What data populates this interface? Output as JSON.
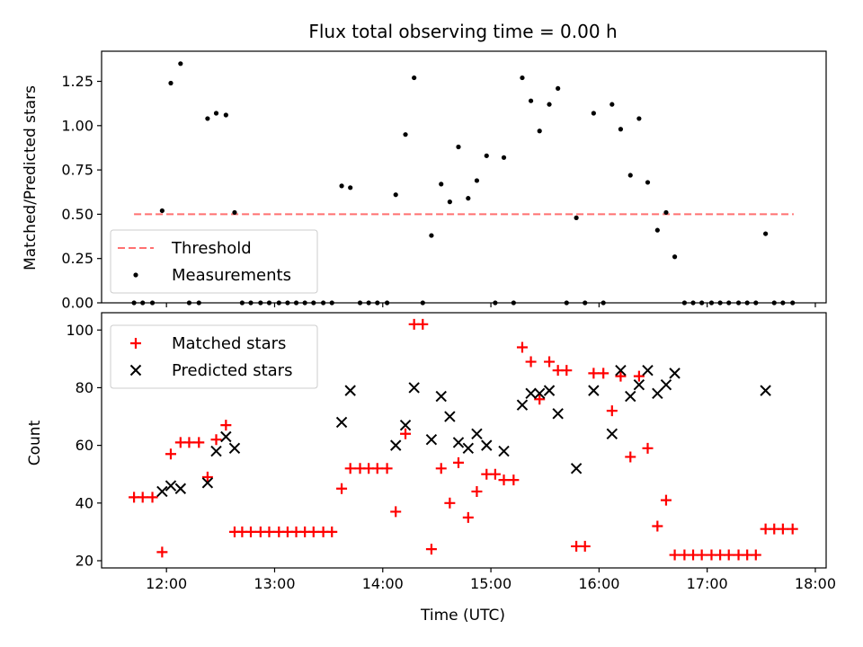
{
  "chart_data": {
    "title": "Flux total observing time = 0.00 h",
    "xlabel": "Time (UTC)",
    "xlim": [
      11.4,
      18.1
    ],
    "xticks": [
      {
        "value": 12,
        "label": "12:00"
      },
      {
        "value": 13,
        "label": "13:00"
      },
      {
        "value": 14,
        "label": "14:00"
      },
      {
        "value": 15,
        "label": "15:00"
      },
      {
        "value": 16,
        "label": "16:00"
      },
      {
        "value": 17,
        "label": "17:00"
      },
      {
        "value": 18,
        "label": "18:00"
      }
    ],
    "panels": [
      {
        "id": "ratio",
        "type": "scatter",
        "ylabel": "Matched/Predicted stars",
        "ylim": [
          0,
          1.42
        ],
        "yticks": [
          {
            "value": 0,
            "label": "0.00"
          },
          {
            "value": 0.25,
            "label": "0.25"
          },
          {
            "value": 0.5,
            "label": "0.50"
          },
          {
            "value": 0.75,
            "label": "0.75"
          },
          {
            "value": 1.0,
            "label": "1.00"
          },
          {
            "value": 1.25,
            "label": "1.25"
          }
        ],
        "legend_position": "lower-left",
        "threshold": {
          "name": "Threshold",
          "value": 0.5,
          "x_range": [
            11.7,
            17.8
          ],
          "color": "#ff7070",
          "style": "dashed"
        },
        "series": [
          {
            "name": "Measurements",
            "marker": "dot",
            "color": "#000000",
            "x": [
              11.7,
              11.78,
              11.87,
              11.96,
              12.04,
              12.13,
              12.21,
              12.3,
              12.38,
              12.46,
              12.55,
              12.63,
              12.7,
              12.78,
              12.87,
              12.95,
              13.04,
              13.12,
              13.2,
              13.28,
              13.36,
              13.45,
              13.53,
              13.62,
              13.7,
              13.79,
              13.87,
              13.95,
              14.04,
              14.12,
              14.21,
              14.29,
              14.37,
              14.45,
              14.54,
              14.62,
              14.7,
              14.79,
              14.87,
              14.96,
              15.04,
              15.12,
              15.21,
              15.29,
              15.37,
              15.45,
              15.54,
              15.62,
              15.7,
              15.79,
              15.87,
              15.95,
              16.04,
              16.12,
              16.2,
              16.29,
              16.37,
              16.45,
              16.54,
              16.62,
              16.7,
              16.79,
              16.87,
              16.95,
              17.04,
              17.12,
              17.2,
              17.29,
              17.37,
              17.45,
              17.54,
              17.62,
              17.7,
              17.79
            ],
            "y": [
              0,
              0,
              0,
              0.52,
              1.24,
              1.35,
              0,
              0,
              1.04,
              1.07,
              1.06,
              0.51,
              0,
              0,
              0,
              0,
              0,
              0,
              0,
              0,
              0,
              0,
              0,
              0.66,
              0.65,
              0,
              0,
              0,
              0,
              0.61,
              0.95,
              1.27,
              0,
              0.38,
              0.67,
              0.57,
              0.88,
              0.59,
              0.69,
              0.83,
              0,
              0.82,
              0,
              1.27,
              1.14,
              0.97,
              1.12,
              1.21,
              0,
              0.48,
              0,
              1.07,
              0,
              1.12,
              0.98,
              0.72,
              1.04,
              0.68,
              0.41,
              0.51,
              0.26,
              0,
              0,
              0,
              0,
              0,
              0,
              0,
              0,
              0,
              0.39,
              0,
              0,
              0
            ]
          }
        ]
      },
      {
        "id": "counts",
        "type": "scatter",
        "ylabel": "Count",
        "ylim": [
          17.5,
          106
        ],
        "yticks": [
          {
            "value": 20,
            "label": "20"
          },
          {
            "value": 40,
            "label": "40"
          },
          {
            "value": 60,
            "label": "60"
          },
          {
            "value": 80,
            "label": "80"
          },
          {
            "value": 100,
            "label": "100"
          }
        ],
        "legend_position": "upper-left",
        "series": [
          {
            "name": "Matched stars",
            "marker": "plus",
            "color": "#ff0000",
            "x": [
              11.7,
              11.78,
              11.87,
              11.96,
              12.04,
              12.13,
              12.21,
              12.3,
              12.38,
              12.46,
              12.55,
              12.63,
              12.7,
              12.78,
              12.87,
              12.95,
              13.04,
              13.12,
              13.2,
              13.28,
              13.36,
              13.45,
              13.53,
              13.62,
              13.7,
              13.79,
              13.87,
              13.95,
              14.04,
              14.12,
              14.21,
              14.29,
              14.37,
              14.45,
              14.54,
              14.62,
              14.7,
              14.79,
              14.87,
              14.96,
              15.04,
              15.12,
              15.21,
              15.29,
              15.37,
              15.45,
              15.54,
              15.62,
              15.7,
              15.79,
              15.87,
              15.95,
              16.04,
              16.12,
              16.2,
              16.29,
              16.37,
              16.45,
              16.54,
              16.62,
              16.7,
              16.79,
              16.87,
              16.95,
              17.04,
              17.12,
              17.2,
              17.29,
              17.37,
              17.45,
              17.54,
              17.62,
              17.7,
              17.79
            ],
            "y": [
              42,
              42,
              42,
              23,
              57,
              61,
              61,
              61,
              49,
              62,
              67,
              30,
              30,
              30,
              30,
              30,
              30,
              30,
              30,
              30,
              30,
              30,
              30,
              45,
              52,
              52,
              52,
              52,
              52,
              37,
              64,
              102,
              102,
              24,
              52,
              40,
              54,
              35,
              44,
              50,
              50,
              48,
              48,
              94,
              89,
              76,
              89,
              86,
              86,
              25,
              25,
              85,
              85,
              72,
              84,
              56,
              84,
              59,
              32,
              41,
              22,
              22,
              22,
              22,
              22,
              22,
              22,
              22,
              22,
              22,
              31,
              31,
              31,
              31
            ]
          },
          {
            "name": "Predicted stars",
            "marker": "cross",
            "color": "#000000",
            "x": [
              11.96,
              12.04,
              12.13,
              12.38,
              12.46,
              12.55,
              12.63,
              13.62,
              13.7,
              14.12,
              14.21,
              14.29,
              14.45,
              14.54,
              14.62,
              14.7,
              14.79,
              14.87,
              14.96,
              15.12,
              15.29,
              15.37,
              15.45,
              15.54,
              15.62,
              15.79,
              15.95,
              16.12,
              16.2,
              16.29,
              16.37,
              16.45,
              16.54,
              16.62,
              16.7,
              17.54
            ],
            "y": [
              44,
              46,
              45,
              47,
              58,
              63,
              59,
              68,
              79,
              60,
              67,
              80,
              62,
              77,
              70,
              61,
              59,
              64,
              60,
              58,
              74,
              78,
              78,
              79,
              71,
              52,
              79,
              64,
              86,
              77,
              81,
              86,
              78,
              81,
              85,
              79
            ]
          }
        ]
      }
    ]
  }
}
